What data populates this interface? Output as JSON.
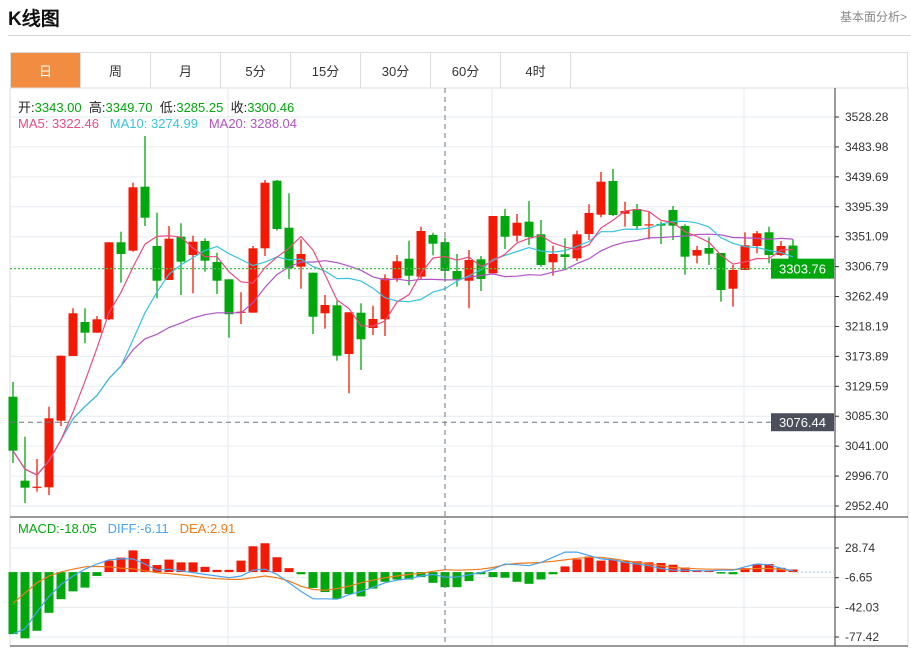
{
  "header": {
    "title": "K线图",
    "fundamental_link": "基本面分析>"
  },
  "tabs": [
    {
      "label": "日",
      "active": true
    },
    {
      "label": "周"
    },
    {
      "label": "月"
    },
    {
      "label": "5分"
    },
    {
      "label": "15分"
    },
    {
      "label": "30分"
    },
    {
      "label": "60分"
    },
    {
      "label": "4时"
    }
  ],
  "legend": {
    "open_label": "开:",
    "open": "3343.00",
    "high_label": "高:",
    "high": "3349.70",
    "low_label": "低:",
    "low": "3285.25",
    "close_label": "收:",
    "close": "3300.46",
    "ma5": "MA5: 3322.46",
    "ma10": "MA10: 3274.99",
    "ma20": "MA20: 3288.04"
  },
  "macd_legend": {
    "macd": "MACD:-18.05",
    "diff": "DIFF:-6.11",
    "dea": "DEA:2.91"
  },
  "colors": {
    "up": "#f31a05",
    "down": "#02a70e",
    "ma5": "#e94c7f",
    "ma10": "#36c3dc",
    "ma20": "#b054c6",
    "diff": "#4aa3f0",
    "dea": "#f07b1b",
    "accent": "#f28c40"
  },
  "chart_data": [
    {
      "type": "candlestick",
      "title": "",
      "yticks": [
        "3528.28",
        "3483.98",
        "3439.69",
        "3395.39",
        "3351.09",
        "3306.79",
        "3262.49",
        "3218.19",
        "3173.89",
        "3129.59",
        "3085.30",
        "3041.00",
        "2996.70",
        "2952.40"
      ],
      "ylim": [
        2952.4,
        3528.28
      ],
      "grid": true,
      "last_price": "3303.76",
      "crosshair": {
        "index": 36,
        "price_label": "3076.44",
        "price": 3076.44
      },
      "ma_periods": [
        5,
        10,
        20
      ],
      "candles_ohlc": [
        [
          3114.2,
          3034.3,
          3016.1,
          3136.0
        ],
        [
          2989.9,
          2979.5,
          2956.9,
          3055.0
        ],
        [
          2979.5,
          2981.0,
          2973.6,
          3022.0
        ],
        [
          2980.1,
          3082.2,
          2968.7,
          3099.4
        ],
        [
          3078.7,
          3174.9,
          3070.8,
          3175.0
        ],
        [
          3174.5,
          3237.7,
          3174.5,
          3245.1
        ],
        [
          3224.8,
          3209.0,
          3193.3,
          3245.1
        ],
        [
          3209.0,
          3228.8,
          3209.0,
          3233.7
        ],
        [
          3228.8,
          3342.8,
          3227.8,
          3343.0
        ],
        [
          3342.8,
          3325.5,
          3283.0,
          3358.5
        ],
        [
          3330.4,
          3424.2,
          3328.9,
          3431.0
        ],
        [
          3425.1,
          3379.2,
          3366.9,
          3500.2
        ],
        [
          3337.3,
          3285.9,
          3259.9,
          3386.6
        ],
        [
          3287.0,
          3348.1,
          3287.0,
          3366.9
        ],
        [
          3351.1,
          3314.1,
          3264.8,
          3370.9
        ],
        [
          3324.0,
          3343.7,
          3267.3,
          3352.6
        ],
        [
          3344.7,
          3315.6,
          3299.3,
          3348.7
        ],
        [
          3313.6,
          3285.9,
          3266.3,
          3327.4
        ],
        [
          3288.0,
          3236.2,
          3201.6,
          3288.0
        ],
        [
          3238.6,
          3240.1,
          3221.8,
          3268.8
        ],
        [
          3238.6,
          3333.9,
          3238.6,
          3337.3
        ],
        [
          3333.9,
          3431.0,
          3322.5,
          3435.0
        ],
        [
          3434.0,
          3362.5,
          3360.0,
          3435.0
        ],
        [
          3364.4,
          3304.3,
          3288.5,
          3415.3
        ],
        [
          3306.7,
          3325.5,
          3274.1,
          3347.2
        ],
        [
          3297.8,
          3232.6,
          3207.0,
          3297.8
        ],
        [
          3237.7,
          3250.0,
          3214.9,
          3264.8
        ],
        [
          3249.5,
          3174.9,
          3167.5,
          3256.3
        ],
        [
          3177.4,
          3239.2,
          3119.3,
          3239.2
        ],
        [
          3238.6,
          3199.2,
          3153.8,
          3252.5
        ],
        [
          3215.9,
          3229.3,
          3205.6,
          3248.9
        ],
        [
          3228.8,
          3289.5,
          3204.1,
          3295.4
        ],
        [
          3289.5,
          3314.7,
          3284.5,
          3324.0
        ],
        [
          3318.5,
          3293.3,
          3279.1,
          3345.2
        ],
        [
          3291.9,
          3359.5,
          3287.0,
          3365.9
        ],
        [
          3353.6,
          3340.7,
          3323.5,
          3357.0
        ],
        [
          3343.0,
          3300.46,
          3285.25,
          3349.7
        ],
        [
          3300.3,
          3288.0,
          3277.1,
          3325.5
        ],
        [
          3285.9,
          3316.6,
          3245.1,
          3331.4
        ],
        [
          3317.6,
          3288.5,
          3270.7,
          3322.5
        ],
        [
          3296.9,
          3381.7,
          3296.9,
          3381.7
        ],
        [
          3381.7,
          3351.1,
          3332.9,
          3392.1
        ],
        [
          3352.6,
          3371.8,
          3343.7,
          3384.7
        ],
        [
          3373.3,
          3350.6,
          3338.8,
          3403.9
        ],
        [
          3354.6,
          3309.2,
          3306.7,
          3375.8
        ],
        [
          3313.2,
          3325.5,
          3293.3,
          3337.8
        ],
        [
          3325.0,
          3321.0,
          3302.8,
          3348.7
        ],
        [
          3319.1,
          3354.6,
          3315.1,
          3360.0
        ],
        [
          3355.1,
          3386.2,
          3346.2,
          3399.1
        ],
        [
          3383.7,
          3432.5,
          3379.8,
          3446.9
        ],
        [
          3433.5,
          3383.2,
          3381.7,
          3451.3
        ],
        [
          3385.1,
          3389.1,
          3365.9,
          3402.9
        ],
        [
          3392.1,
          3366.9,
          3362.5,
          3399.5
        ],
        [
          3367.9,
          3369.4,
          3347.2,
          3388.1
        ],
        [
          3369.9,
          3367.4,
          3340.3,
          3373.3
        ],
        [
          3390.6,
          3367.4,
          3346.2,
          3396.5
        ],
        [
          3366.9,
          3321.5,
          3294.8,
          3369.4
        ],
        [
          3323.0,
          3331.4,
          3311.7,
          3337.3
        ],
        [
          3334.4,
          3325.9,
          3309.2,
          3350.2
        ],
        [
          3327.0,
          3272.2,
          3254.9,
          3327.0
        ],
        [
          3274.1,
          3301.8,
          3247.5,
          3309.2
        ],
        [
          3301.8,
          3338.3,
          3301.8,
          3357.6
        ],
        [
          3337.3,
          3356.1,
          3326.5,
          3359.5
        ],
        [
          3357.6,
          3324.0,
          3311.7,
          3365.9
        ],
        [
          3324.0,
          3337.3,
          3322.5,
          3344.7
        ],
        [
          3338.0,
          3303.76,
          3292.0,
          3347.0
        ]
      ]
    },
    {
      "type": "bar+line",
      "title": "MACD",
      "yticks": [
        "28.74",
        "-6.65",
        "-42.03",
        "-77.42"
      ],
      "ylim": [
        -77.42,
        28.74
      ],
      "macd": [
        -74,
        -79,
        -70,
        -48.6,
        -32.3,
        -23,
        -18.5,
        -4.6,
        13.7,
        17.3,
        25.9,
        15.7,
        8.4,
        14.9,
        11.6,
        11.6,
        6.3,
        2.7,
        2.7,
        13.7,
        30.8,
        34.4,
        17.7,
        4.7,
        -2.6,
        -18.9,
        -23.8,
        -31.9,
        -26.2,
        -29,
        -19.7,
        -11.6,
        -8.8,
        -8.8,
        -5.9,
        -12.8,
        -18.05,
        -18,
        -10.7,
        -2.6,
        -5.9,
        -6.7,
        -11.6,
        -14,
        -8.8,
        -2.6,
        6.8,
        15.3,
        18.5,
        13.7,
        14.5,
        12.9,
        12.9,
        11.6,
        10.8,
        8.8,
        5.5,
        2.3,
        1.5,
        -1.8,
        -2.6,
        4.7,
        9.6,
        9.6,
        5.1,
        3.1
      ],
      "diff": [
        -73.7,
        -67.6,
        -47.4,
        -29.0,
        -14.8,
        -4.6,
        3.5,
        9.6,
        14.5,
        15.7,
        15.7,
        9.6,
        2.3,
        3.5,
        1.5,
        -0.6,
        -2.7,
        -4.6,
        -6.7,
        -4.6,
        2.3,
        3.5,
        -2.7,
        -12.8,
        -23.0,
        -31.9,
        -31.9,
        -32.3,
        -27.0,
        -23.0,
        -18.1,
        -12.8,
        -9.6,
        -7.9,
        -4.6,
        -2.7,
        -6.11,
        -5.9,
        -3.4,
        -0.6,
        3.5,
        9.6,
        8.8,
        7.6,
        11.6,
        17.7,
        23.8,
        23.8,
        19.8,
        15.7,
        14.5,
        11.6,
        9.6,
        7.6,
        4.3,
        2.3,
        2.3,
        1.5,
        1.5,
        2.3,
        2.3,
        6.3,
        9.6,
        8.8,
        4.7,
        1.5
      ],
      "dea": [
        -37.2,
        -25.0,
        -12.8,
        -4.6,
        0.2,
        3.5,
        6.3,
        6.8,
        6.3,
        4.7,
        3.9,
        1.5,
        -0.6,
        -1.8,
        -3.4,
        -4.6,
        -6.7,
        -7.9,
        -8.7,
        -8.7,
        -6.7,
        -4.6,
        -6.7,
        -10.7,
        -16.8,
        -20.8,
        -21.7,
        -19.7,
        -16.8,
        -12.8,
        -9.5,
        -6.7,
        -4.6,
        -2.7,
        -1.4,
        1.0,
        2.91,
        2.3,
        2.7,
        3.5,
        5.5,
        8.8,
        10.4,
        10.8,
        11.6,
        12.9,
        14.5,
        16.5,
        17.7,
        17.7,
        15.7,
        13.7,
        11.6,
        9.6,
        7.6,
        5.5,
        4.7,
        3.9,
        3.5,
        3.5,
        3.1,
        3.5,
        4.3,
        4.3,
        3.1,
        1.5
      ]
    }
  ]
}
